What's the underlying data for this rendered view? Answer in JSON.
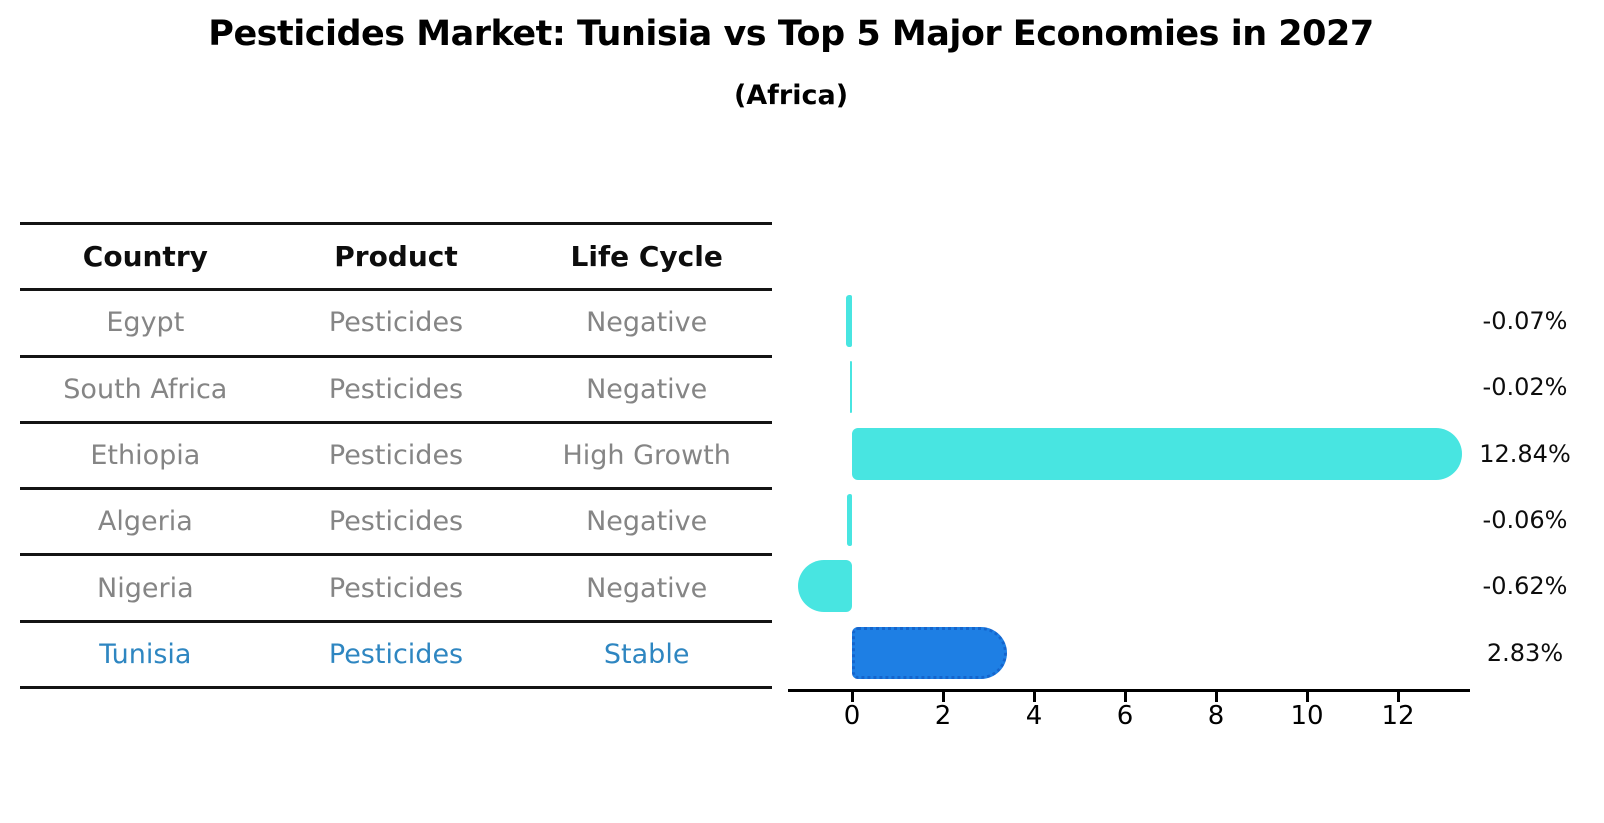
{
  "title": "Pesticides Market: Tunisia vs Top 5 Major Economies in 2027",
  "subtitle": "(Africa)",
  "table": {
    "headers": [
      "Country",
      "Product",
      "Life Cycle"
    ],
    "rows": [
      {
        "country": "Egypt",
        "product": "Pesticides",
        "life_cycle": "Negative",
        "highlighted": false
      },
      {
        "country": "South Africa",
        "product": "Pesticides",
        "life_cycle": "Negative",
        "highlighted": false
      },
      {
        "country": "Ethiopia",
        "product": "Pesticides",
        "life_cycle": "High Growth",
        "highlighted": false
      },
      {
        "country": "Algeria",
        "product": "Pesticides",
        "life_cycle": "Negative",
        "highlighted": false
      },
      {
        "country": "Nigeria",
        "product": "Pesticides",
        "life_cycle": "Negative",
        "highlighted": false
      },
      {
        "country": "Tunisia",
        "product": "Pesticides",
        "life_cycle": "Stable",
        "highlighted": true
      }
    ]
  },
  "chart_data": {
    "type": "bar",
    "orientation": "horizontal",
    "title": "Pesticides Market: Tunisia vs Top 5 Major Economies in 2027",
    "subtitle": "(Africa)",
    "categories": [
      "Egypt",
      "South Africa",
      "Ethiopia",
      "Algeria",
      "Nigeria",
      "Tunisia"
    ],
    "values": [
      -0.07,
      -0.02,
      12.84,
      -0.06,
      -0.62,
      2.83
    ],
    "value_labels": [
      "-0.07%",
      "-0.02%",
      "12.84%",
      "-0.06%",
      "-0.62%",
      "2.83%"
    ],
    "unit": "%",
    "x_ticks": [
      0,
      2,
      4,
      6,
      8,
      10,
      12
    ],
    "xlim": [
      -1.4,
      13.6
    ],
    "grid": false,
    "legend": false,
    "highlight_index": 5,
    "bar_style": "rounded-cap",
    "highlight_bar_style": "rounded-cap-dotted-border"
  },
  "colors": {
    "bar": "#48e5e1",
    "highlight_bar": "#1e7fe4",
    "highlight_bar_border": "#1465cd",
    "highlight_text": "#2e86c1",
    "row_text": "#858585",
    "header_text": "#0d0d0d",
    "axis": "#000000",
    "value_label_text": "#0d0d0d"
  }
}
